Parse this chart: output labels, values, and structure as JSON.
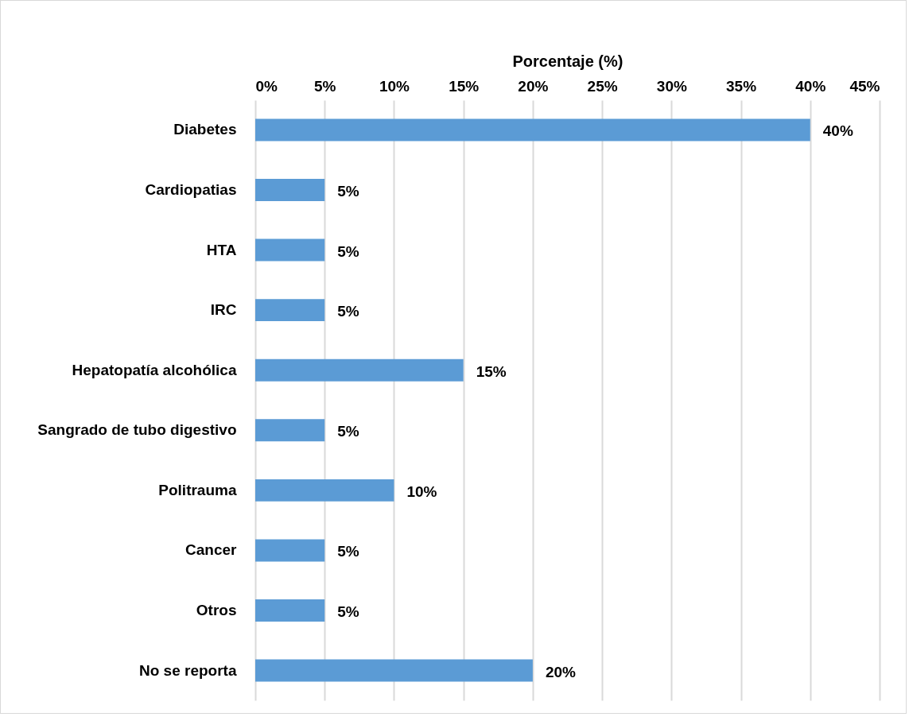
{
  "chart_data": {
    "type": "bar",
    "orientation": "horizontal",
    "xlabel": "Porcentaje (%)",
    "categories": [
      "Diabetes",
      "Cardiopatias",
      "HTA",
      "IRC",
      "Hepatopatía alcohólica",
      "Sangrado de tubo digestivo",
      "Politrauma",
      "Cancer",
      "Otros",
      "No se reporta"
    ],
    "values": [
      40,
      5,
      5,
      5,
      15,
      5,
      10,
      5,
      5,
      20
    ],
    "value_labels": [
      "40%",
      "5%",
      "5%",
      "5%",
      "15%",
      "5%",
      "10%",
      "5%",
      "5%",
      "20%"
    ],
    "color": "#5b9bd5",
    "xlim": [
      0,
      45
    ],
    "xticks": [
      {
        "value": 0,
        "label": "0%"
      },
      {
        "value": 5,
        "label": "5%"
      },
      {
        "value": 10,
        "label": "10%"
      },
      {
        "value": 15,
        "label": "15%"
      },
      {
        "value": 20,
        "label": "20%"
      },
      {
        "value": 25,
        "label": "25%"
      },
      {
        "value": 30,
        "label": "30%"
      },
      {
        "value": 35,
        "label": "35%"
      },
      {
        "value": 40,
        "label": "40%"
      },
      {
        "value": 45,
        "label": "45%"
      }
    ],
    "grid": "x"
  }
}
